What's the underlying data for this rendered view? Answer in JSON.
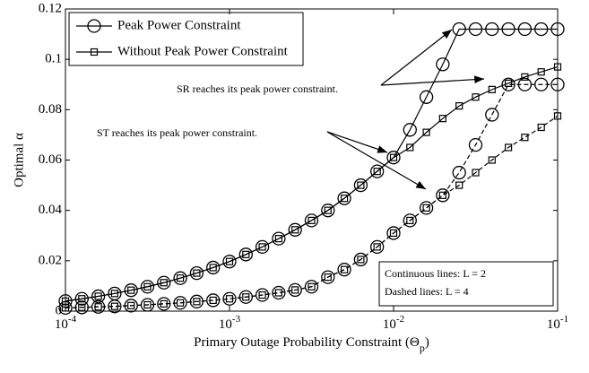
{
  "chart_data": {
    "type": "line",
    "xlabel": "Primary Outage Probability Constraint (Θ_p)",
    "ylabel": "Optimal α",
    "xlog": true,
    "xlim": [
      0.0001,
      0.1
    ],
    "xticks": [
      {
        "value": 0.0001,
        "label": "10^-4"
      },
      {
        "value": 0.001,
        "label": "10^-3"
      },
      {
        "value": 0.01,
        "label": "10^-2"
      },
      {
        "value": 0.1,
        "label": "10^-1"
      }
    ],
    "ylim": [
      0,
      0.12
    ],
    "yticks": [
      0,
      0.02,
      0.04,
      0.06,
      0.08,
      0.1,
      0.12
    ],
    "legend": "upper left",
    "x": [
      0.0001,
      0.0001259,
      0.0001585,
      0.0001995,
      0.0002512,
      0.0003162,
      0.0003981,
      0.0005012,
      0.000631,
      0.0007943,
      0.001,
      0.001259,
      0.001585,
      0.001995,
      0.002512,
      0.003162,
      0.003981,
      0.005012,
      0.00631,
      0.007943,
      0.01,
      0.01259,
      0.01585,
      0.01995,
      0.02512,
      0.03162,
      0.03981,
      0.05012,
      0.0631,
      0.07943,
      0.1
    ],
    "series": [
      {
        "name": "Peak Power Constraint",
        "marker": "circle",
        "color": "#000000",
        "lines": [
          {
            "dash": false,
            "values": [
              0.004,
              0.0049,
              0.0059,
              0.007,
              0.0083,
              0.0097,
              0.0113,
              0.0131,
              0.0151,
              0.0173,
              0.0197,
              0.0225,
              0.0255,
              0.0288,
              0.0323,
              0.036,
              0.04,
              0.0448,
              0.05,
              0.0555,
              0.061,
              0.072,
              0.085,
              0.098,
              0.112,
              0.112,
              0.112,
              0.112,
              0.112,
              0.112,
              0.112
            ]
          },
          {
            "dash": true,
            "values": [
              0.0013,
              0.0015,
              0.0017,
              0.0019,
              0.0022,
              0.0025,
              0.0029,
              0.0033,
              0.0038,
              0.0043,
              0.0049,
              0.0056,
              0.0064,
              0.0073,
              0.0084,
              0.0097,
              0.0135,
              0.0165,
              0.0205,
              0.0255,
              0.031,
              0.036,
              0.041,
              0.046,
              0.055,
              0.066,
              0.078,
              0.09,
              0.09,
              0.09,
              0.09
            ]
          }
        ]
      },
      {
        "name": "Without Peak Power Constraint",
        "marker": "square",
        "color": "#000000",
        "lines": [
          {
            "dash": false,
            "values": [
              0.004,
              0.0049,
              0.0059,
              0.007,
              0.0083,
              0.0097,
              0.0113,
              0.0131,
              0.0151,
              0.0173,
              0.0197,
              0.0225,
              0.0255,
              0.0288,
              0.0323,
              0.036,
              0.04,
              0.0448,
              0.05,
              0.0555,
              0.061,
              0.065,
              0.071,
              0.0765,
              0.0815,
              0.085,
              0.088,
              0.0905,
              0.093,
              0.095,
              0.097
            ]
          },
          {
            "dash": true,
            "values": [
              0.0013,
              0.0015,
              0.0017,
              0.0019,
              0.0022,
              0.0025,
              0.0029,
              0.0033,
              0.0038,
              0.0043,
              0.0049,
              0.0056,
              0.0064,
              0.0073,
              0.0084,
              0.0097,
              0.0135,
              0.0165,
              0.0205,
              0.0255,
              0.031,
              0.036,
              0.041,
              0.046,
              0.05,
              0.055,
              0.06,
              0.065,
              0.069,
              0.073,
              0.0775
            ]
          }
        ]
      }
    ],
    "annotations": [
      "SR reaches its peak power constraint.",
      "ST reaches its peak power constraint."
    ],
    "text_box": [
      "Continuous lines: L = 2",
      "Dashed lines: L = 4"
    ]
  }
}
